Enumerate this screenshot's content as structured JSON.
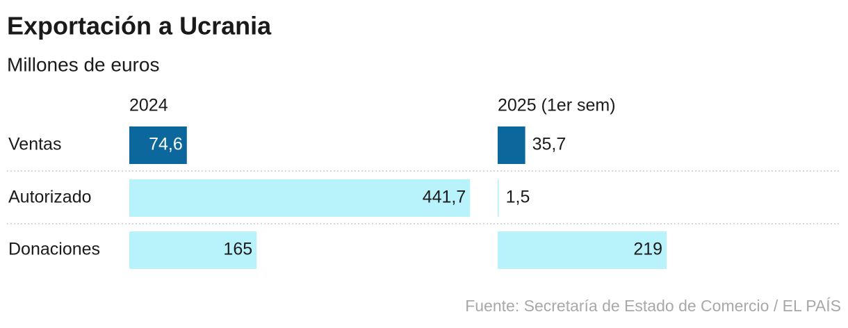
{
  "chart_data": {
    "type": "bar",
    "title": "Exportación a Ucrania",
    "subtitle": "Millones de euros",
    "source": "Fuente: Secretaría de Estado de Comercio / EL PAÍS",
    "categories": [
      "Ventas",
      "Autorizado",
      "Donaciones"
    ],
    "category_colors": [
      "#0b679c",
      "#b8f3fc",
      "#b8f3fc"
    ],
    "series": [
      {
        "name": "2024",
        "values": [
          74.6,
          441.7,
          165
        ],
        "value_labels": [
          "74,6",
          "441,7",
          "165"
        ]
      },
      {
        "name": "2025 (1er sem)",
        "values": [
          35.7,
          1.5,
          219
        ],
        "value_labels": [
          "35,7",
          "1,5",
          "219"
        ]
      }
    ]
  }
}
